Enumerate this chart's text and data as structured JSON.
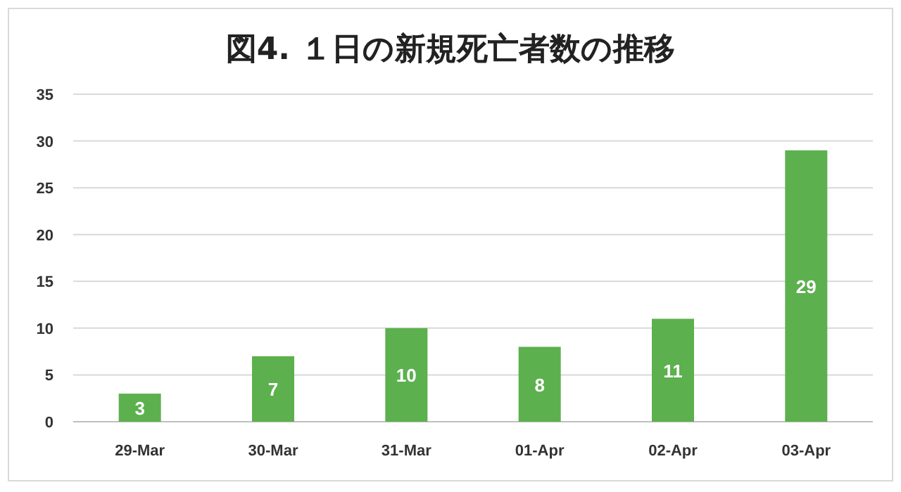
{
  "chart_data": {
    "type": "bar",
    "title": "図4. １日の新規死亡者数の推移",
    "categories": [
      "29-Mar",
      "30-Mar",
      "31-Mar",
      "01-Apr",
      "02-Apr",
      "03-Apr"
    ],
    "values": [
      3,
      7,
      10,
      8,
      11,
      29
    ],
    "color": "#5cb04e",
    "ylim": [
      0,
      35
    ],
    "yticks": [
      0,
      5,
      10,
      15,
      20,
      25,
      30,
      35
    ],
    "grid": "y",
    "data_labels": true
  }
}
